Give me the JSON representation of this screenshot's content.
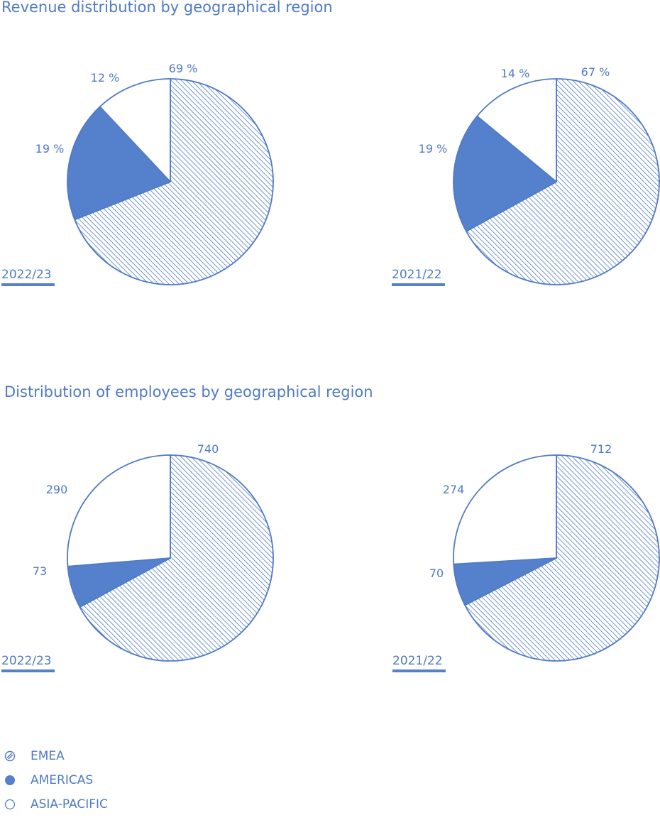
{
  "titles": {
    "revenue": "Revenue distribution by geographical region",
    "employees": "Distribution of employees by geographical region"
  },
  "colors": {
    "accent": "#4f7ac7",
    "americas": "#5581cc",
    "asia_pacific": "#ffffff"
  },
  "legend": [
    {
      "name": "EMEA",
      "pattern": "hatched"
    },
    {
      "name": "AMERICAS",
      "pattern": "solid"
    },
    {
      "name": "ASIA-PACIFIC",
      "pattern": "empty"
    }
  ],
  "chart_data": [
    {
      "type": "pie",
      "group": "Revenue distribution by geographical region",
      "year": "2022/23",
      "labels": [
        "EMEA",
        "AMERICAS",
        "ASIA-PACIFIC"
      ],
      "values": [
        69,
        19,
        12
      ],
      "value_labels": [
        "69 %",
        "19 %",
        "12 %"
      ]
    },
    {
      "type": "pie",
      "group": "Revenue distribution by geographical region",
      "year": "2021/22",
      "labels": [
        "EMEA",
        "AMERICAS",
        "ASIA-PACIFIC"
      ],
      "values": [
        67,
        19,
        14
      ],
      "value_labels": [
        "67 %",
        "19 %",
        "14 %"
      ]
    },
    {
      "type": "pie",
      "group": "Distribution of employees by geographical region",
      "year": "2022/23",
      "labels": [
        "EMEA",
        "AMERICAS",
        "ASIA-PACIFIC"
      ],
      "values": [
        740,
        73,
        290
      ],
      "value_labels": [
        "740",
        "73",
        "290"
      ]
    },
    {
      "type": "pie",
      "group": "Distribution of employees by geographical region",
      "year": "2021/22",
      "labels": [
        "EMEA",
        "AMERICAS",
        "ASIA-PACIFIC"
      ],
      "values": [
        712,
        70,
        274
      ],
      "value_labels": [
        "712",
        "70",
        "274"
      ]
    }
  ]
}
